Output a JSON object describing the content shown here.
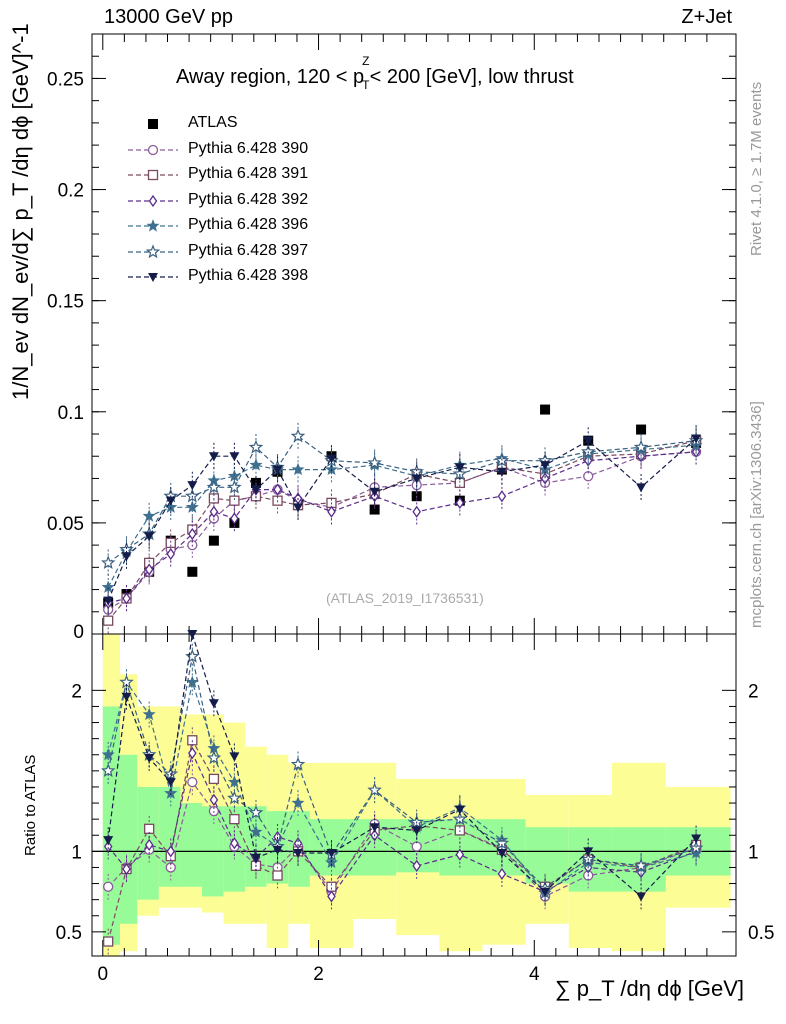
{
  "header": {
    "energy_label": "13000 GeV pp",
    "process_label": "Z+Jet",
    "rivet_label": "Rivet 4.1.0, ≥ 1.7M events",
    "mcplots_label": "mcplots.cern.ch [arXiv:1306.3436]",
    "analysis_id": "(ATLAS_2019_I1736531)"
  },
  "title_parts": {
    "pre": "Away region, 120 < p",
    "sup": "Z",
    "sub": "T",
    "post": " < 200 [GeV], low thrust"
  },
  "ylabel_main": "1/N_ev dN_ev/d∑ p_T /dη dϕ  [GeV]^-1",
  "ylabel_ratio": "Ratio to ATLAS",
  "xlabel": "∑ p_T /dη dϕ [GeV]",
  "colors": {
    "data": "#000000",
    "390": "#8a5a9c",
    "391": "#7a4a60",
    "392": "#5a2c8c",
    "396": "#3f7090",
    "397": "#3a6080",
    "398": "#141d4a",
    "band_inner": "#97fb98",
    "band_outer": "#fdfd95"
  },
  "chart_data": [
    {
      "type": "scatter",
      "panel": "main",
      "x": [
        0.05,
        0.22,
        0.43,
        0.63,
        0.83,
        1.03,
        1.22,
        1.42,
        1.62,
        1.81,
        2.12,
        2.52,
        2.91,
        3.31,
        3.7,
        4.1,
        4.5,
        4.99,
        5.5
      ],
      "ylim": [
        0,
        0.27
      ],
      "xlim": [
        -0.1,
        5.87
      ],
      "yticks": [
        0.05,
        0.1,
        0.15,
        0.2,
        0.25
      ],
      "ytick_labels": [
        "0.05",
        "0.1",
        "0.15",
        "0.2",
        "0.25"
      ],
      "series": [
        {
          "name": "ATLAS",
          "marker": "square-filled",
          "values": [
            0.014,
            0.018,
            0.028,
            0.042,
            0.028,
            0.042,
            0.05,
            0.068,
            0.073,
            0.058,
            0.08,
            0.056,
            0.062,
            0.06,
            0.074,
            0.101,
            0.087,
            0.092,
            0.086
          ]
        },
        {
          "name": "Pythia 6.428 390",
          "marker": "circle-open",
          "values": [
            0.011,
            0.016,
            0.028,
            0.038,
            0.04,
            0.052,
            0.06,
            0.062,
            0.065,
            0.06,
            0.057,
            0.066,
            0.067,
            0.068,
            0.075,
            0.068,
            0.071,
            0.08,
            0.082
          ]
        },
        {
          "name": "Pythia 6.428 391",
          "marker": "square-open",
          "values": [
            0.006,
            0.016,
            0.032,
            0.041,
            0.047,
            0.061,
            0.06,
            0.062,
            0.06,
            0.058,
            0.059,
            0.063,
            0.072,
            0.068,
            0.075,
            0.072,
            0.08,
            0.081,
            0.087
          ]
        },
        {
          "name": "Pythia 6.428 392",
          "marker": "diamond-open",
          "values": [
            0.014,
            0.016,
            0.029,
            0.036,
            0.045,
            0.055,
            0.052,
            0.065,
            0.065,
            0.061,
            0.055,
            0.062,
            0.055,
            0.059,
            0.062,
            0.07,
            0.078,
            0.08,
            0.082
          ]
        },
        {
          "name": "Pythia 6.428 396",
          "marker": "star-filled",
          "values": [
            0.021,
            0.037,
            0.053,
            0.057,
            0.057,
            0.069,
            0.071,
            0.076,
            0.074,
            0.074,
            0.074,
            0.076,
            0.071,
            0.076,
            0.079,
            0.074,
            0.081,
            0.083,
            0.085
          ]
        },
        {
          "name": "Pythia 6.428 397",
          "marker": "star-open",
          "values": [
            0.032,
            0.038,
            0.045,
            0.062,
            0.062,
            0.066,
            0.066,
            0.084,
            0.075,
            0.089,
            0.078,
            0.077,
            0.073,
            0.072,
            0.078,
            0.078,
            0.082,
            0.084,
            0.087
          ]
        },
        {
          "name": "Pythia 6.428 398",
          "marker": "triangle-down-filled",
          "values": [
            0.015,
            0.035,
            0.044,
            0.06,
            0.067,
            0.08,
            0.08,
            0.065,
            0.074,
            0.057,
            0.079,
            0.064,
            0.07,
            0.075,
            0.073,
            0.076,
            0.087,
            0.066,
            0.088
          ]
        }
      ]
    },
    {
      "type": "scatter",
      "panel": "ratio",
      "x": [
        0.05,
        0.22,
        0.43,
        0.63,
        0.83,
        1.03,
        1.22,
        1.42,
        1.62,
        1.81,
        2.12,
        2.52,
        2.91,
        3.31,
        3.7,
        4.1,
        4.5,
        4.99,
        5.5
      ],
      "ylim": [
        0.35,
        2.35
      ],
      "xlim": [
        -0.1,
        5.87
      ],
      "xticks": [
        0,
        2,
        4
      ],
      "xtick_labels": [
        "0",
        "2",
        "4"
      ],
      "yticks": [
        0.5,
        1,
        2
      ],
      "ytick_labels": [
        "0.5",
        "1",
        "2"
      ],
      "bin_edges": [
        0.0,
        0.16,
        0.32,
        0.52,
        0.72,
        0.92,
        1.12,
        1.32,
        1.52,
        1.72,
        1.92,
        2.32,
        2.72,
        3.12,
        3.52,
        3.92,
        4.32,
        4.72,
        5.22,
        5.82
      ],
      "band_inner_low": [
        0.42,
        0.55,
        0.7,
        0.78,
        0.78,
        0.72,
        0.75,
        0.78,
        0.8,
        0.78,
        0.85,
        0.85,
        0.87,
        0.85,
        0.85,
        0.8,
        0.75,
        0.75,
        0.85
      ],
      "band_inner_high": [
        1.9,
        1.6,
        1.4,
        1.4,
        1.3,
        1.28,
        1.28,
        1.28,
        1.25,
        1.25,
        1.2,
        1.2,
        1.2,
        1.2,
        1.2,
        1.15,
        1.15,
        1.15,
        1.15
      ],
      "band_outer_low": [
        0.35,
        0.38,
        0.6,
        0.65,
        0.65,
        0.62,
        0.55,
        0.55,
        0.4,
        0.55,
        0.4,
        0.58,
        0.48,
        0.38,
        0.42,
        0.55,
        0.4,
        0.38,
        0.65
      ],
      "band_outer_high": [
        2.35,
        2.1,
        1.9,
        1.9,
        1.85,
        1.85,
        1.8,
        1.65,
        1.6,
        1.55,
        1.55,
        1.55,
        1.45,
        1.45,
        1.45,
        1.35,
        1.35,
        1.55,
        1.4
      ],
      "series": [
        {
          "name": "Pythia 6.428 390",
          "marker": "circle-open",
          "values": [
            0.78,
            0.9,
            1.01,
            0.9,
            1.43,
            1.25,
            1.03,
            0.92,
            0.9,
            1.03,
            0.75,
            1.17,
            1.03,
            1.13,
            1.02,
            0.72,
            0.85,
            0.9,
            1.02
          ]
        },
        {
          "name": "Pythia 6.428 391",
          "marker": "square-open",
          "values": [
            0.44,
            0.89,
            1.14,
            0.97,
            1.69,
            1.45,
            1.2,
            0.91,
            0.85,
            1.0,
            0.78,
            1.13,
            1.16,
            1.13,
            1.01,
            0.78,
            0.95,
            0.9,
            1.04
          ]
        },
        {
          "name": "Pythia 6.428 392",
          "marker": "diamond-open",
          "values": [
            1.03,
            0.89,
            1.04,
            1.0,
            1.61,
            1.32,
            1.05,
            0.96,
            1.09,
            1.05,
            0.72,
            1.1,
            0.91,
            0.98,
            0.86,
            0.75,
            0.9,
            0.87,
            1.0
          ]
        },
        {
          "name": "Pythia 6.428 396",
          "marker": "star-filled",
          "values": [
            1.6,
            2.05,
            1.85,
            1.36,
            2.05,
            1.64,
            1.43,
            1.12,
            1.03,
            1.3,
            0.93,
            1.38,
            1.15,
            1.27,
            1.07,
            0.74,
            0.93,
            0.9,
            0.99
          ]
        },
        {
          "name": "Pythia 6.428 397",
          "marker": "star-open",
          "values": [
            1.5,
            2.05,
            1.6,
            1.48,
            2.21,
            1.58,
            1.33,
            1.24,
            1.03,
            1.54,
            0.98,
            1.38,
            1.18,
            1.2,
            1.05,
            0.77,
            0.95,
            0.91,
            1.02
          ]
        },
        {
          "name": "Pythia 6.428 398",
          "marker": "triangle-down-filled",
          "values": [
            1.07,
            1.96,
            1.58,
            1.43,
            2.39,
            1.92,
            1.59,
            0.96,
            1.01,
            0.99,
            0.99,
            1.15,
            1.13,
            1.26,
            0.99,
            0.75,
            1.0,
            0.72,
            1.08
          ]
        }
      ]
    }
  ]
}
